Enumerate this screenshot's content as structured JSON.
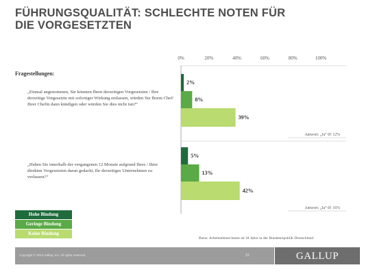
{
  "title_line1": "FÜHRUNGSQUALITÄT: SCHLECHTE NOTEN FÜR",
  "title_line2": "DIE VORGESETZTEN",
  "fragestellungen_label": "Fragestellungen:",
  "question1": "„Einmal angenommen, Sie könnten Ihren derzeitigen Vorgesetzten / Ihre derzeitige Vorgesetzte mit sofortiger Wirkung entlassen, würden Sie Ihrem Chef/ Ihrer Chefin dann kündigen oder würden Sie dies nicht tun?“",
  "question2": "„Haben Sie innerhalb der vergangenen 12 Monate aufgrund Ihres / Ihrer direkten Vorgesetzten daran gedacht, Ihr derzeitiges Unternehmen zu verlassen?“",
  "legend": [
    {
      "label": "Hohe Bindung",
      "color": "#1e6b3c"
    },
    {
      "label": "Geringe Bindung",
      "color": "#5aaa46"
    },
    {
      "label": "Keine Bindung",
      "color": "#b9db6f"
    }
  ],
  "basis": "Basis: Arbeitnehmer/innen ab 18 Jahre in der Bundesrepublik Deutschland",
  "footer_left": "Copyright © 2013 Gallup, Inc. All rights reserved.",
  "footer_page": "15",
  "logo_text": "GALLUP",
  "chart_data": {
    "type": "bar",
    "orientation": "horizontal",
    "xlim": [
      0,
      100
    ],
    "x_ticks": [
      "0%",
      "20%",
      "40%",
      "60%",
      "80%",
      "100%"
    ],
    "groups": [
      {
        "values": [
          2,
          8,
          39
        ],
        "labels": [
          "2%",
          "8%",
          "39%"
        ],
        "note": "Antwort: „Ja“ Ø: 12%"
      },
      {
        "values": [
          5,
          13,
          42
        ],
        "labels": [
          "5%",
          "13%",
          "42%"
        ],
        "note": "Antwort: „Ja“ Ø: 16%"
      }
    ],
    "series": [
      {
        "name": "Hohe Bindung",
        "color": "#1e6b3c"
      },
      {
        "name": "Geringe Bindung",
        "color": "#5aaa46"
      },
      {
        "name": "Keine Bindung",
        "color": "#b9db6f"
      }
    ],
    "grid": false,
    "legend_position": "bottom-left"
  }
}
